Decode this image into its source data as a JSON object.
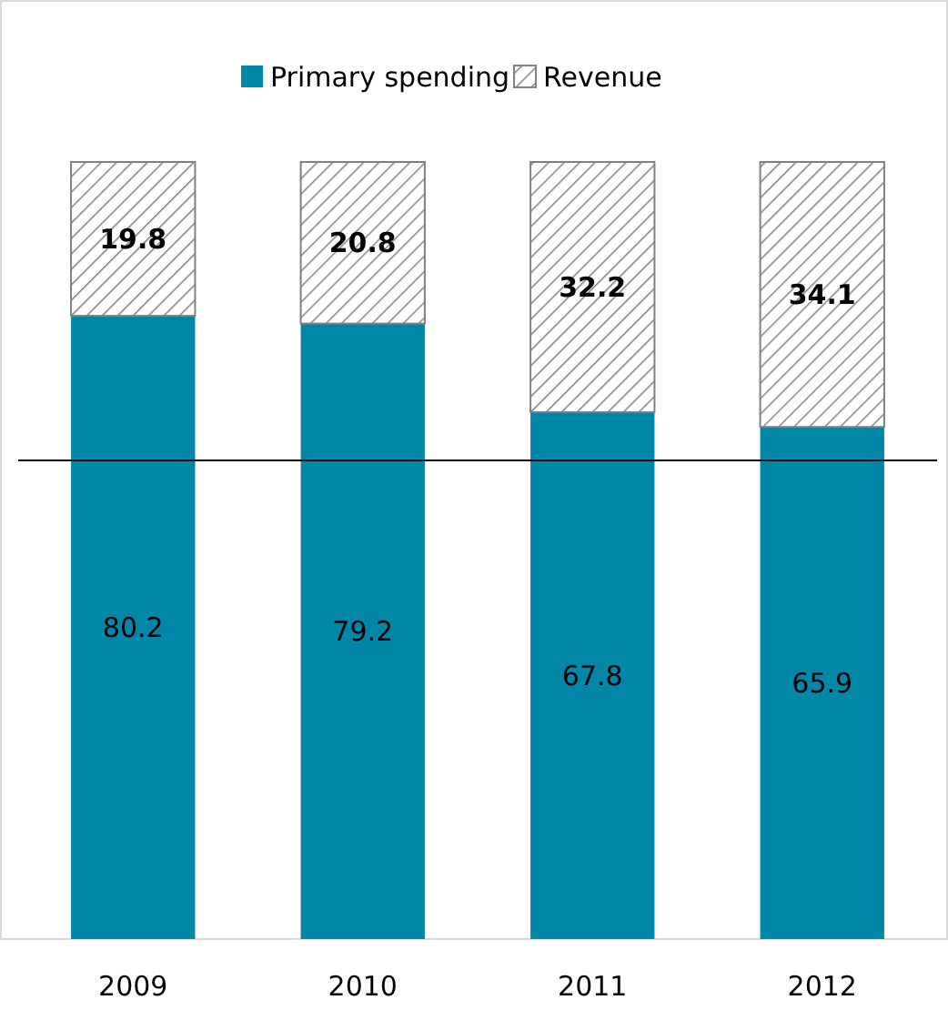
{
  "chart_data": {
    "type": "bar",
    "stacked": true,
    "categories": [
      "2009",
      "2010",
      "2011",
      "2012"
    ],
    "series": [
      {
        "name": "Primary spending",
        "color": "#0087a8",
        "values": [
          80.2,
          79.2,
          67.8,
          65.9
        ]
      },
      {
        "name": "Revenue",
        "color": "#808080",
        "values": [
          19.8,
          20.8,
          32.2,
          34.1
        ]
      }
    ],
    "data_labels": true,
    "legend": "top",
    "ref_lines": [
      {
        "axis": "y",
        "value": 61.6,
        "color": "#000000"
      }
    ]
  }
}
